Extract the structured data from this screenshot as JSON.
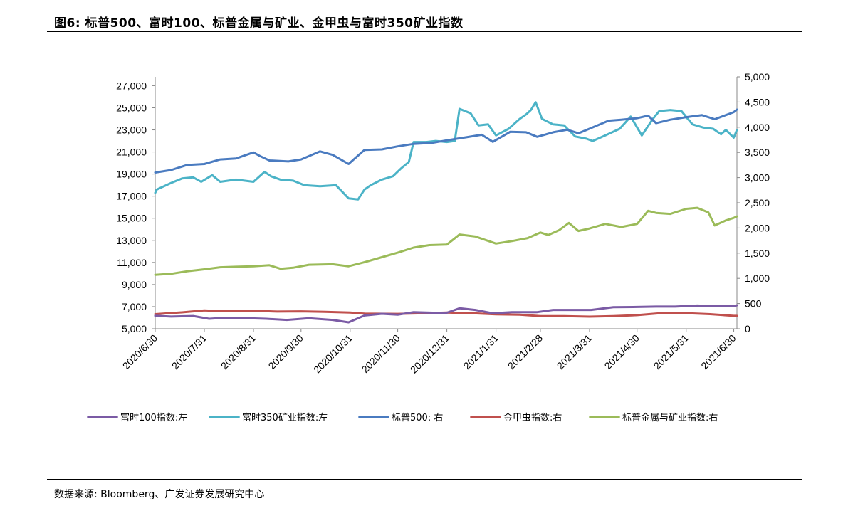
{
  "header": {
    "title": "图6: 标普500、富时100、标普金属与矿业、金甲虫与富时350矿业指数"
  },
  "footer": {
    "source": "数据来源: Bloomberg、广发证券发展研究中心"
  },
  "chart_data": {
    "type": "line",
    "x_type": "date",
    "x_ticks": [
      "2020/6/30",
      "2020/7/31",
      "2020/8/31",
      "2020/9/30",
      "2020/10/31",
      "2020/11/30",
      "2020/12/31",
      "2021/1/31",
      "2021/2/28",
      "2021/3/31",
      "2021/4/30",
      "2021/5/31",
      "2021/6/30"
    ],
    "x_range": [
      "2020-06-30",
      "2021-07-02"
    ],
    "y_left": {
      "ticks": [
        "27,000",
        "25,000",
        "23,000",
        "21,000",
        "19,000",
        "17,000",
        "15,000",
        "13,000",
        "11,000",
        "9,000",
        "7,000",
        "5,000"
      ],
      "range": [
        5000,
        27800
      ]
    },
    "y_right": {
      "ticks": [
        "5,000",
        "4,500",
        "4,000",
        "3,500",
        "3,000",
        "2,500",
        "2,000",
        "1,500",
        "1,000",
        "500",
        "0"
      ],
      "range": [
        0,
        5000
      ]
    },
    "grid": false,
    "legend_position": "bottom",
    "series": [
      {
        "name": "富时100指数:左",
        "axis": "left",
        "color": "#7B5BA5",
        "points": [
          [
            "2020-06-30",
            6170
          ],
          [
            "2020-07-10",
            6100
          ],
          [
            "2020-07-24",
            6150
          ],
          [
            "2020-08-03",
            5900
          ],
          [
            "2020-08-14",
            6000
          ],
          [
            "2020-08-28",
            5950
          ],
          [
            "2020-09-08",
            5900
          ],
          [
            "2020-09-21",
            5800
          ],
          [
            "2020-10-05",
            5950
          ],
          [
            "2020-10-20",
            5800
          ],
          [
            "2020-10-30",
            5580
          ],
          [
            "2020-11-09",
            6200
          ],
          [
            "2020-11-20",
            6350
          ],
          [
            "2020-11-30",
            6270
          ],
          [
            "2020-12-10",
            6500
          ],
          [
            "2020-12-22",
            6450
          ],
          [
            "2020-12-31",
            6450
          ],
          [
            "2021-01-08",
            6850
          ],
          [
            "2021-01-18",
            6700
          ],
          [
            "2021-01-29",
            6400
          ],
          [
            "2021-02-10",
            6500
          ],
          [
            "2021-02-26",
            6500
          ],
          [
            "2021-03-08",
            6700
          ],
          [
            "2021-03-22",
            6700
          ],
          [
            "2021-04-01",
            6700
          ],
          [
            "2021-04-15",
            6950
          ],
          [
            "2021-04-30",
            6970
          ],
          [
            "2021-05-12",
            7000
          ],
          [
            "2021-05-24",
            7000
          ],
          [
            "2021-06-07",
            7100
          ],
          [
            "2021-06-18",
            7050
          ],
          [
            "2021-06-30",
            7040
          ],
          [
            "2021-07-02",
            7120
          ]
        ]
      },
      {
        "name": "富时350矿业指数:左",
        "axis": "left",
        "color": "#4BB3C7",
        "points": [
          [
            "2020-06-30",
            17300
          ],
          [
            "2020-07-01",
            17600
          ],
          [
            "2020-07-10",
            18200
          ],
          [
            "2020-07-17",
            18600
          ],
          [
            "2020-07-24",
            18700
          ],
          [
            "2020-07-29",
            18300
          ],
          [
            "2020-08-05",
            18900
          ],
          [
            "2020-08-10",
            18300
          ],
          [
            "2020-08-20",
            18500
          ],
          [
            "2020-08-31",
            18300
          ],
          [
            "2020-09-07",
            19200
          ],
          [
            "2020-09-11",
            18800
          ],
          [
            "2020-09-17",
            18500
          ],
          [
            "2020-09-25",
            18400
          ],
          [
            "2020-10-02",
            18000
          ],
          [
            "2020-10-12",
            17900
          ],
          [
            "2020-10-22",
            18000
          ],
          [
            "2020-10-30",
            16800
          ],
          [
            "2020-11-05",
            16700
          ],
          [
            "2020-11-09",
            17600
          ],
          [
            "2020-11-13",
            18000
          ],
          [
            "2020-11-20",
            18500
          ],
          [
            "2020-11-27",
            18800
          ],
          [
            "2020-12-02",
            19500
          ],
          [
            "2020-12-07",
            20100
          ],
          [
            "2020-12-10",
            21900
          ],
          [
            "2020-12-18",
            21900
          ],
          [
            "2020-12-24",
            22000
          ],
          [
            "2020-12-31",
            21900
          ],
          [
            "2021-01-05",
            22000
          ],
          [
            "2021-01-08",
            24900
          ],
          [
            "2021-01-15",
            24500
          ],
          [
            "2021-01-20",
            23400
          ],
          [
            "2021-01-26",
            23500
          ],
          [
            "2021-01-31",
            22500
          ],
          [
            "2021-02-08",
            23100
          ],
          [
            "2021-02-15",
            24000
          ],
          [
            "2021-02-19",
            24400
          ],
          [
            "2021-02-22",
            24800
          ],
          [
            "2021-02-25",
            25500
          ],
          [
            "2021-03-01",
            24000
          ],
          [
            "2021-03-08",
            23500
          ],
          [
            "2021-03-15",
            23400
          ],
          [
            "2021-03-22",
            22400
          ],
          [
            "2021-03-29",
            22200
          ],
          [
            "2021-04-02",
            22000
          ],
          [
            "2021-04-10",
            22500
          ],
          [
            "2021-04-19",
            23100
          ],
          [
            "2021-04-26",
            24200
          ],
          [
            "2021-05-03",
            22500
          ],
          [
            "2021-05-10",
            24000
          ],
          [
            "2021-05-14",
            24700
          ],
          [
            "2021-05-21",
            24800
          ],
          [
            "2021-05-28",
            24700
          ],
          [
            "2021-06-01",
            24000
          ],
          [
            "2021-06-04",
            23500
          ],
          [
            "2021-06-11",
            23200
          ],
          [
            "2021-06-17",
            23100
          ],
          [
            "2021-06-22",
            22600
          ],
          [
            "2021-06-25",
            23000
          ],
          [
            "2021-06-30",
            22300
          ],
          [
            "2021-07-02",
            23000
          ]
        ]
      },
      {
        "name": "标普500: 右",
        "axis": "right",
        "color": "#4A7BC0",
        "points": [
          [
            "2020-06-30",
            3100
          ],
          [
            "2020-07-10",
            3150
          ],
          [
            "2020-07-20",
            3250
          ],
          [
            "2020-07-31",
            3270
          ],
          [
            "2020-08-10",
            3360
          ],
          [
            "2020-08-20",
            3380
          ],
          [
            "2020-08-31",
            3500
          ],
          [
            "2020-09-04",
            3430
          ],
          [
            "2020-09-10",
            3340
          ],
          [
            "2020-09-22",
            3320
          ],
          [
            "2020-09-30",
            3360
          ],
          [
            "2020-10-12",
            3520
          ],
          [
            "2020-10-20",
            3450
          ],
          [
            "2020-10-30",
            3270
          ],
          [
            "2020-11-09",
            3550
          ],
          [
            "2020-11-20",
            3560
          ],
          [
            "2020-11-30",
            3620
          ],
          [
            "2020-12-10",
            3670
          ],
          [
            "2020-12-22",
            3690
          ],
          [
            "2020-12-31",
            3740
          ],
          [
            "2021-01-12",
            3800
          ],
          [
            "2021-01-22",
            3850
          ],
          [
            "2021-01-29",
            3710
          ],
          [
            "2021-02-09",
            3910
          ],
          [
            "2021-02-19",
            3900
          ],
          [
            "2021-02-26",
            3810
          ],
          [
            "2021-03-08",
            3900
          ],
          [
            "2021-03-17",
            3950
          ],
          [
            "2021-03-24",
            3880
          ],
          [
            "2021-03-31",
            3970
          ],
          [
            "2021-04-12",
            4130
          ],
          [
            "2021-04-20",
            4150
          ],
          [
            "2021-04-30",
            4180
          ],
          [
            "2021-05-07",
            4230
          ],
          [
            "2021-05-12",
            4080
          ],
          [
            "2021-05-21",
            4150
          ],
          [
            "2021-05-31",
            4200
          ],
          [
            "2021-06-10",
            4240
          ],
          [
            "2021-06-18",
            4160
          ],
          [
            "2021-06-30",
            4300
          ],
          [
            "2021-07-02",
            4350
          ]
        ]
      },
      {
        "name": "金甲虫指数:右",
        "axis": "right",
        "color": "#C0504D",
        "points": [
          [
            "2020-06-30",
            290
          ],
          [
            "2020-07-15",
            320
          ],
          [
            "2020-07-31",
            365
          ],
          [
            "2020-08-10",
            350
          ],
          [
            "2020-08-31",
            355
          ],
          [
            "2020-09-15",
            340
          ],
          [
            "2020-09-30",
            345
          ],
          [
            "2020-10-15",
            335
          ],
          [
            "2020-10-31",
            320
          ],
          [
            "2020-11-09",
            300
          ],
          [
            "2020-11-30",
            295
          ],
          [
            "2020-12-15",
            305
          ],
          [
            "2020-12-31",
            320
          ],
          [
            "2021-01-15",
            310
          ],
          [
            "2021-01-31",
            285
          ],
          [
            "2021-02-15",
            280
          ],
          [
            "2021-02-28",
            250
          ],
          [
            "2021-03-15",
            250
          ],
          [
            "2021-03-31",
            240
          ],
          [
            "2021-04-15",
            250
          ],
          [
            "2021-04-30",
            270
          ],
          [
            "2021-05-15",
            310
          ],
          [
            "2021-05-31",
            310
          ],
          [
            "2021-06-15",
            290
          ],
          [
            "2021-06-30",
            255
          ],
          [
            "2021-07-02",
            255
          ]
        ]
      },
      {
        "name": "标普金属与矿业指数:右",
        "axis": "right",
        "color": "#9BBB59",
        "points": [
          [
            "2020-06-30",
            1070
          ],
          [
            "2020-07-10",
            1090
          ],
          [
            "2020-07-20",
            1140
          ],
          [
            "2020-07-31",
            1180
          ],
          [
            "2020-08-10",
            1220
          ],
          [
            "2020-08-20",
            1230
          ],
          [
            "2020-08-31",
            1240
          ],
          [
            "2020-09-10",
            1260
          ],
          [
            "2020-09-17",
            1190
          ],
          [
            "2020-09-25",
            1210
          ],
          [
            "2020-10-05",
            1270
          ],
          [
            "2020-10-20",
            1280
          ],
          [
            "2020-10-30",
            1240
          ],
          [
            "2020-11-09",
            1320
          ],
          [
            "2020-11-20",
            1420
          ],
          [
            "2020-11-30",
            1510
          ],
          [
            "2020-12-10",
            1610
          ],
          [
            "2020-12-20",
            1660
          ],
          [
            "2020-12-31",
            1670
          ],
          [
            "2021-01-08",
            1870
          ],
          [
            "2021-01-18",
            1830
          ],
          [
            "2021-01-31",
            1690
          ],
          [
            "2021-02-10",
            1740
          ],
          [
            "2021-02-20",
            1800
          ],
          [
            "2021-02-28",
            1910
          ],
          [
            "2021-03-05",
            1860
          ],
          [
            "2021-03-12",
            1960
          ],
          [
            "2021-03-18",
            2100
          ],
          [
            "2021-03-24",
            1940
          ],
          [
            "2021-03-31",
            1990
          ],
          [
            "2021-04-10",
            2080
          ],
          [
            "2021-04-20",
            2020
          ],
          [
            "2021-04-30",
            2080
          ],
          [
            "2021-05-07",
            2340
          ],
          [
            "2021-05-12",
            2300
          ],
          [
            "2021-05-21",
            2280
          ],
          [
            "2021-05-31",
            2380
          ],
          [
            "2021-06-07",
            2400
          ],
          [
            "2021-06-14",
            2310
          ],
          [
            "2021-06-18",
            2050
          ],
          [
            "2021-06-25",
            2150
          ],
          [
            "2021-06-30",
            2200
          ],
          [
            "2021-07-02",
            2230
          ]
        ]
      }
    ]
  }
}
